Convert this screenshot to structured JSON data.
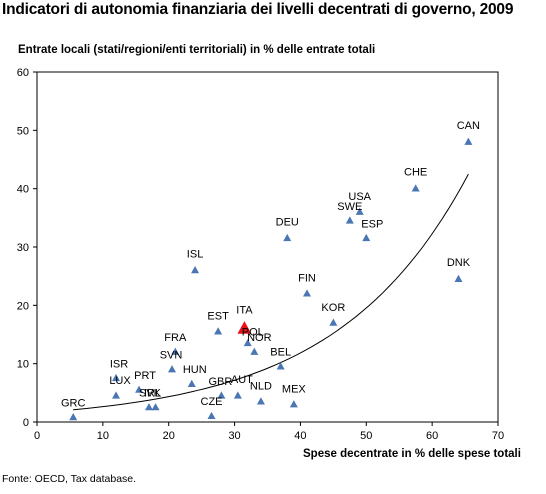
{
  "title": "Indicatori di autonomia finanziaria dei livelli decentrati di governo, 2009",
  "source": "Fonte: OECD, Tax database.",
  "chart_data": {
    "type": "scatter",
    "title": "Indicatori di autonomia finanziaria dei livelli decentrati di governo, 2009",
    "xlabel": "Spese decentrate in % delle spese totali",
    "ylabel": "Entrate locali (stati/regioni/enti  territoriali)  in % delle entrate totali",
    "xlim": [
      0,
      70
    ],
    "ylim": [
      0,
      60
    ],
    "xticks": [
      "0",
      "10",
      "20",
      "30",
      "40",
      "50",
      "60",
      "70"
    ],
    "yticks": [
      "0",
      "10",
      "20",
      "30",
      "40",
      "50",
      "60"
    ],
    "grid": false,
    "colors": {
      "marker": "#4a77b4",
      "highlight": "#e8131a",
      "trend": "#000000"
    },
    "points": [
      {
        "label": "GRC",
        "x": 5.5,
        "y": 0.8
      },
      {
        "label": "LUX",
        "x": 12,
        "y": 4.5
      },
      {
        "label": "ISR",
        "x": 12,
        "y": 7.5
      },
      {
        "label": "PRT",
        "x": 15.5,
        "y": 5.5
      },
      {
        "label": "SVK",
        "x": 17,
        "y": 2.5
      },
      {
        "label": "IRL",
        "x": 18,
        "y": 2.5
      },
      {
        "label": "SVN",
        "x": 20.5,
        "y": 9
      },
      {
        "label": "FRA",
        "x": 21,
        "y": 12
      },
      {
        "label": "HUN",
        "x": 23.5,
        "y": 6.5
      },
      {
        "label": "ISL",
        "x": 24,
        "y": 26
      },
      {
        "label": "CZE",
        "x": 26.5,
        "y": 1
      },
      {
        "label": "EST",
        "x": 27.5,
        "y": 15.5
      },
      {
        "label": "GBR",
        "x": 28,
        "y": 4.5
      },
      {
        "label": "AUT",
        "x": 30.5,
        "y": 4.5
      },
      {
        "label": "POL",
        "x": 32,
        "y": 13.5
      },
      {
        "label": "NOR",
        "x": 33,
        "y": 12
      },
      {
        "label": "NLD",
        "x": 34,
        "y": 3.5
      },
      {
        "label": "BEL",
        "x": 37,
        "y": 9.5
      },
      {
        "label": "DEU",
        "x": 38,
        "y": 31.5
      },
      {
        "label": "MEX",
        "x": 39,
        "y": 3
      },
      {
        "label": "FIN",
        "x": 41,
        "y": 22
      },
      {
        "label": "KOR",
        "x": 45,
        "y": 17
      },
      {
        "label": "SWE",
        "x": 47.5,
        "y": 34.5
      },
      {
        "label": "USA",
        "x": 49,
        "y": 36
      },
      {
        "label": "ESP",
        "x": 50,
        "y": 31.5
      },
      {
        "label": "CHE",
        "x": 57.5,
        "y": 40
      },
      {
        "label": "DNK",
        "x": 64,
        "y": 24.5
      },
      {
        "label": "CAN",
        "x": 65.5,
        "y": 48
      }
    ],
    "highlight": {
      "label": "ITA",
      "x": 31.5,
      "y": 16
    },
    "trendline": {
      "type": "exponential",
      "x_from": 5.5,
      "x_to": 65.5
    }
  }
}
